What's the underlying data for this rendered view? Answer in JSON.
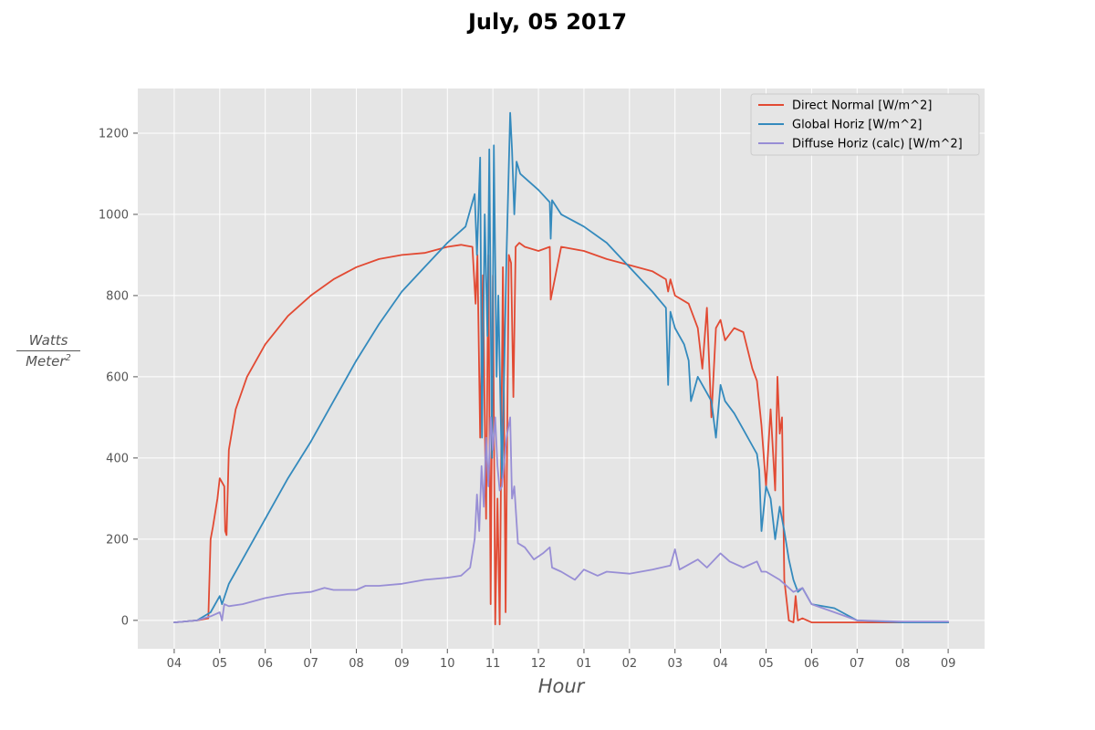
{
  "chart_data": {
    "type": "line",
    "title": "July, 05 2017",
    "xlabel": "Hour",
    "ylabel": {
      "numerator": "Watts",
      "denominator": "Meter",
      "exponent": "2"
    },
    "ylim": [
      -70,
      1310
    ],
    "xlim": [
      3.2,
      21.8
    ],
    "yticks": [
      0,
      200,
      400,
      600,
      800,
      1000,
      1200
    ],
    "xticks": [
      {
        "h": 4,
        "label": "04"
      },
      {
        "h": 5,
        "label": "05"
      },
      {
        "h": 6,
        "label": "06"
      },
      {
        "h": 7,
        "label": "07"
      },
      {
        "h": 8,
        "label": "08"
      },
      {
        "h": 9,
        "label": "09"
      },
      {
        "h": 10,
        "label": "10"
      },
      {
        "h": 11,
        "label": "11"
      },
      {
        "h": 12,
        "label": "12"
      },
      {
        "h": 13,
        "label": "01"
      },
      {
        "h": 14,
        "label": "02"
      },
      {
        "h": 15,
        "label": "03"
      },
      {
        "h": 16,
        "label": "04"
      },
      {
        "h": 17,
        "label": "05"
      },
      {
        "h": 18,
        "label": "06"
      },
      {
        "h": 19,
        "label": "07"
      },
      {
        "h": 20,
        "label": "08"
      },
      {
        "h": 21,
        "label": "09"
      }
    ],
    "grid": true,
    "legend_position": "top-right",
    "series": [
      {
        "name": "Direct Normal [W/m^2]",
        "color": "#e24a33",
        "x": [
          4.0,
          4.5,
          4.75,
          4.8,
          4.85,
          4.95,
          5.0,
          5.1,
          5.12,
          5.15,
          5.2,
          5.35,
          5.6,
          6.0,
          6.5,
          7.0,
          7.5,
          8.0,
          8.5,
          9.0,
          9.5,
          10.0,
          10.3,
          10.55,
          10.62,
          10.66,
          10.72,
          10.78,
          10.85,
          10.9,
          10.95,
          11.0,
          11.05,
          11.1,
          11.15,
          11.22,
          11.28,
          11.35,
          11.4,
          11.45,
          11.5,
          11.58,
          11.7,
          12.0,
          12.25,
          12.27,
          12.5,
          13.0,
          13.5,
          14.0,
          14.5,
          14.8,
          14.85,
          14.9,
          15.0,
          15.3,
          15.5,
          15.6,
          15.7,
          15.8,
          15.9,
          16.0,
          16.1,
          16.3,
          16.5,
          16.7,
          16.8,
          16.9,
          17.0,
          17.1,
          17.2,
          17.25,
          17.3,
          17.35,
          17.4,
          17.45,
          17.5,
          17.6,
          17.65,
          17.7,
          17.8,
          18.0,
          19.0,
          20.0,
          21.0
        ],
        "y": [
          -5,
          0,
          5,
          200,
          230,
          300,
          350,
          330,
          220,
          210,
          420,
          520,
          600,
          680,
          750,
          800,
          840,
          870,
          890,
          900,
          905,
          920,
          925,
          920,
          780,
          900,
          450,
          850,
          250,
          900,
          40,
          850,
          -10,
          300,
          -10,
          870,
          20,
          900,
          880,
          550,
          920,
          930,
          920,
          910,
          920,
          790,
          920,
          910,
          890,
          875,
          860,
          840,
          810,
          840,
          800,
          780,
          720,
          620,
          770,
          500,
          720,
          740,
          690,
          720,
          710,
          620,
          590,
          480,
          330,
          520,
          320,
          600,
          460,
          500,
          100,
          50,
          0,
          -5,
          60,
          0,
          5,
          -5,
          -5,
          -5,
          -5
        ]
      },
      {
        "name": "Global Horiz [W/m^2]",
        "color": "#348abd",
        "x": [
          4.0,
          4.5,
          4.8,
          5.0,
          5.05,
          5.2,
          5.5,
          6.0,
          6.5,
          7.0,
          7.5,
          8.0,
          8.5,
          9.0,
          9.5,
          10.0,
          10.4,
          10.6,
          10.65,
          10.72,
          10.76,
          10.82,
          10.88,
          10.92,
          10.98,
          11.02,
          11.08,
          11.12,
          11.2,
          11.3,
          11.38,
          11.42,
          11.47,
          11.52,
          11.6,
          12.0,
          12.25,
          12.27,
          12.3,
          12.5,
          13.0,
          13.5,
          14.0,
          14.5,
          14.8,
          14.85,
          14.9,
          15.0,
          15.2,
          15.3,
          15.35,
          15.5,
          15.7,
          15.8,
          15.9,
          16.0,
          16.1,
          16.3,
          16.5,
          16.7,
          16.8,
          16.85,
          16.9,
          17.0,
          17.1,
          17.2,
          17.3,
          17.4,
          17.5,
          17.6,
          17.7,
          17.8,
          18.0,
          18.5,
          19.0,
          20.0,
          21.0
        ],
        "y": [
          -5,
          0,
          20,
          60,
          40,
          90,
          150,
          250,
          350,
          440,
          540,
          640,
          730,
          810,
          870,
          930,
          970,
          1050,
          900,
          1140,
          450,
          1000,
          700,
          1160,
          400,
          1170,
          600,
          800,
          350,
          900,
          1250,
          1160,
          1000,
          1130,
          1100,
          1060,
          1030,
          940,
          1035,
          1000,
          970,
          930,
          870,
          810,
          770,
          580,
          760,
          720,
          680,
          640,
          540,
          600,
          560,
          540,
          450,
          580,
          540,
          510,
          470,
          430,
          410,
          370,
          220,
          330,
          300,
          200,
          280,
          220,
          150,
          100,
          70,
          80,
          40,
          30,
          0,
          -5,
          -5
        ]
      },
      {
        "name": "Diffuse Horiz (calc) [W/m^2]",
        "color": "#988ed5",
        "x": [
          4.0,
          4.5,
          4.8,
          5.0,
          5.05,
          5.1,
          5.2,
          5.5,
          6.0,
          6.5,
          7.0,
          7.3,
          7.5,
          8.0,
          8.2,
          8.5,
          9.0,
          9.5,
          10.0,
          10.3,
          10.5,
          10.6,
          10.65,
          10.7,
          10.75,
          10.8,
          10.85,
          10.9,
          10.95,
          11.0,
          11.05,
          11.1,
          11.15,
          11.2,
          11.3,
          11.38,
          11.42,
          11.47,
          11.55,
          11.7,
          11.9,
          12.1,
          12.25,
          12.3,
          12.5,
          12.8,
          13.0,
          13.3,
          13.5,
          14.0,
          14.5,
          14.9,
          15.0,
          15.1,
          15.5,
          15.7,
          16.0,
          16.2,
          16.5,
          16.8,
          16.9,
          17.0,
          17.3,
          17.6,
          17.8,
          18.0,
          18.5,
          19.0,
          20.0,
          21.0
        ],
        "y": [
          -5,
          0,
          10,
          20,
          0,
          40,
          35,
          40,
          55,
          65,
          70,
          80,
          75,
          75,
          85,
          85,
          90,
          100,
          105,
          110,
          130,
          200,
          310,
          220,
          380,
          280,
          450,
          330,
          500,
          420,
          500,
          380,
          320,
          330,
          450,
          500,
          300,
          330,
          190,
          180,
          150,
          165,
          180,
          130,
          120,
          100,
          125,
          110,
          120,
          115,
          125,
          135,
          175,
          125,
          150,
          130,
          165,
          145,
          130,
          145,
          120,
          120,
          100,
          70,
          80,
          40,
          20,
          0,
          -3,
          -3
        ]
      }
    ]
  }
}
